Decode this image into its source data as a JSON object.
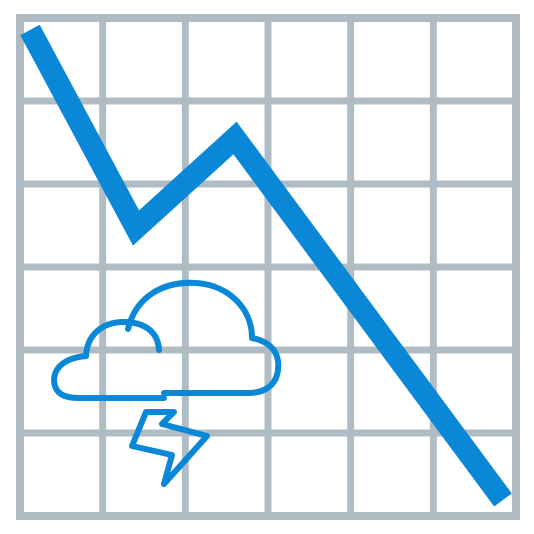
{
  "illustration": {
    "icon": "downtrend-chart-storm-icon",
    "grid_color": "#b0bcc3",
    "line_color": "#0a87d6",
    "cloud_color": "#0a87d6",
    "background_color": "#ffffff"
  }
}
